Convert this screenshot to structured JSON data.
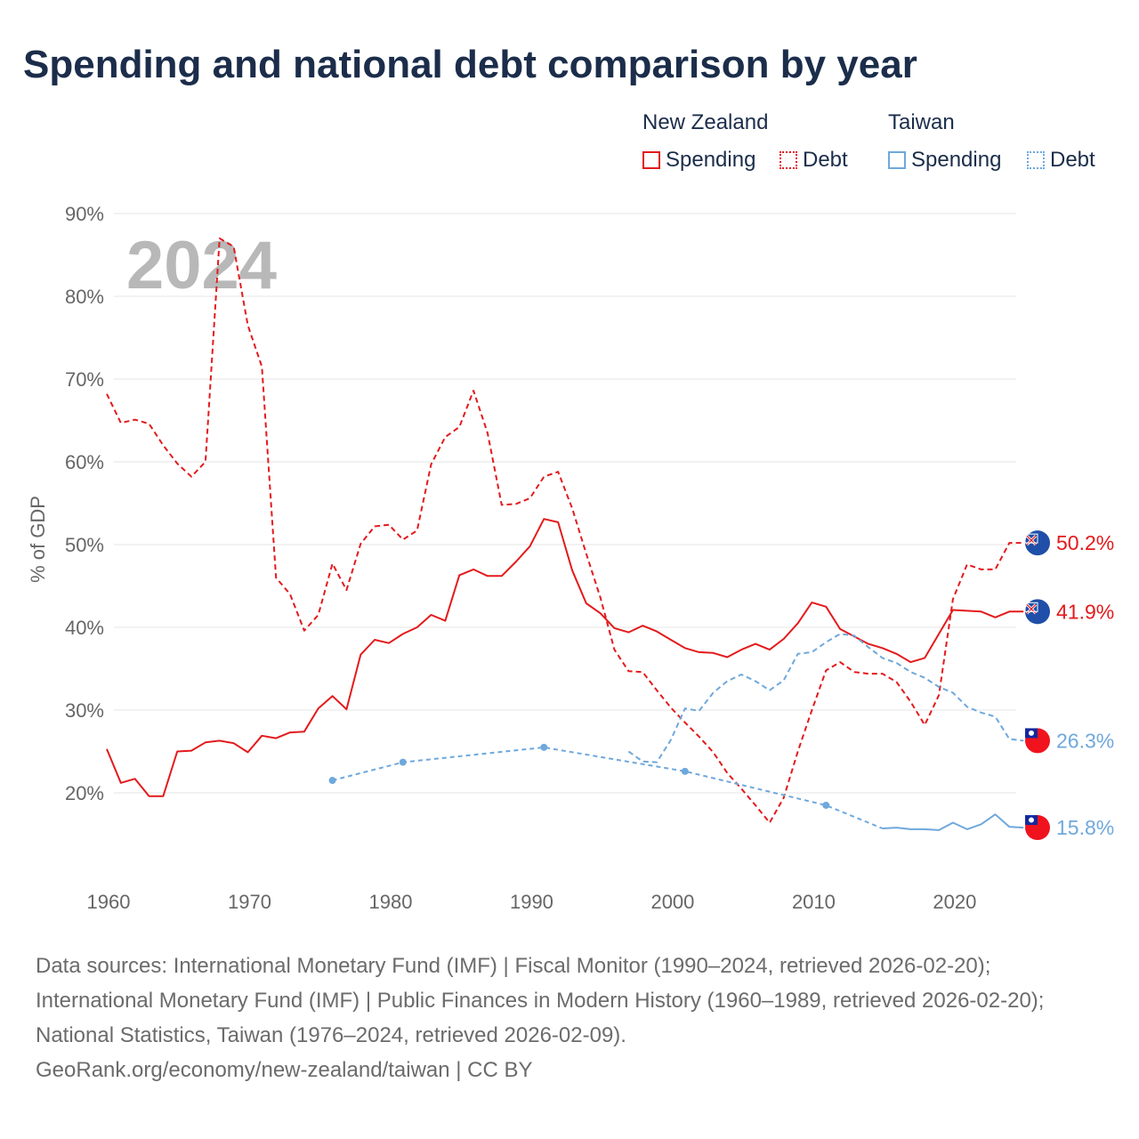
{
  "title": "Spending and national debt comparison by year",
  "legend": {
    "groups": [
      {
        "label": "New Zealand",
        "items": [
          {
            "label": "Spending",
            "color": "#e31a1c",
            "style": "solid"
          },
          {
            "label": "Debt",
            "color": "#e31a1c",
            "style": "dotted"
          }
        ]
      },
      {
        "label": "Taiwan",
        "items": [
          {
            "label": "Spending",
            "color": "#6fa8dc",
            "style": "solid"
          },
          {
            "label": "Debt",
            "color": "#6fa8dc",
            "style": "dotted"
          }
        ]
      }
    ]
  },
  "year_label": "2024",
  "source_lines": [
    "Data sources: International Monetary Fund (IMF) | Fiscal Monitor (1990–2024, retrieved 2026-02-20); International Monetary Fund (IMF) | Public Finances in Modern History (1960–1989, retrieved 2026-02-20); National Statistics, Taiwan (1976–2024, retrieved 2026-02-09).",
    "GeoRank.org/economy/new-zealand/taiwan | CC BY"
  ],
  "chart_data": {
    "type": "line",
    "title": "Spending and national debt comparison by year",
    "xlabel": "",
    "ylabel": "% of GDP",
    "xlim": [
      1960,
      2026
    ],
    "ylim": [
      10,
      90
    ],
    "x_ticks": [
      1960,
      1970,
      1980,
      1990,
      2000,
      2010,
      2020
    ],
    "x_tick_labels": [
      "1960",
      "1970",
      "1980",
      "1990",
      "2000",
      "2010",
      "2020"
    ],
    "y_ticks": [
      20,
      30,
      40,
      50,
      60,
      70,
      80,
      90
    ],
    "y_tick_labels": [
      "20%",
      "30%",
      "40%",
      "50%",
      "60%",
      "70%",
      "80%",
      "90%"
    ],
    "grid": true,
    "series": [
      {
        "name": "New Zealand Spending",
        "color": "#e31a1c",
        "dash": "solid",
        "markers": false,
        "end_label": "41.9%",
        "points": [
          [
            1960,
            25.3
          ],
          [
            1961,
            21.2
          ],
          [
            1962,
            21.7
          ],
          [
            1963,
            19.6
          ],
          [
            1964,
            19.6
          ],
          [
            1965,
            25.0
          ],
          [
            1966,
            25.1
          ],
          [
            1967,
            26.1
          ],
          [
            1968,
            26.3
          ],
          [
            1969,
            26.0
          ],
          [
            1970,
            24.9
          ],
          [
            1971,
            26.9
          ],
          [
            1972,
            26.6
          ],
          [
            1973,
            27.3
          ],
          [
            1974,
            27.4
          ],
          [
            1975,
            30.2
          ],
          [
            1976,
            31.7
          ],
          [
            1977,
            30.1
          ],
          [
            1978,
            36.7
          ],
          [
            1979,
            38.5
          ],
          [
            1980,
            38.1
          ],
          [
            1981,
            39.2
          ],
          [
            1982,
            40.0
          ],
          [
            1983,
            41.5
          ],
          [
            1984,
            40.8
          ],
          [
            1985,
            46.3
          ],
          [
            1986,
            47.0
          ],
          [
            1987,
            46.2
          ],
          [
            1988,
            46.2
          ],
          [
            1989,
            47.9
          ],
          [
            1990,
            49.8
          ],
          [
            1991,
            53.1
          ],
          [
            1992,
            52.7
          ],
          [
            1993,
            46.9
          ],
          [
            1994,
            42.9
          ],
          [
            1995,
            41.7
          ],
          [
            1996,
            39.9
          ],
          [
            1997,
            39.4
          ],
          [
            1998,
            40.2
          ],
          [
            1999,
            39.5
          ],
          [
            2000,
            38.5
          ],
          [
            2001,
            37.5
          ],
          [
            2002,
            37.0
          ],
          [
            2003,
            36.9
          ],
          [
            2004,
            36.4
          ],
          [
            2005,
            37.3
          ],
          [
            2006,
            38.0
          ],
          [
            2007,
            37.3
          ],
          [
            2008,
            38.6
          ],
          [
            2009,
            40.5
          ],
          [
            2010,
            43.0
          ],
          [
            2011,
            42.5
          ],
          [
            2012,
            39.8
          ],
          [
            2013,
            38.9
          ],
          [
            2014,
            38.0
          ],
          [
            2015,
            37.5
          ],
          [
            2016,
            36.8
          ],
          [
            2017,
            35.8
          ],
          [
            2018,
            36.3
          ],
          [
            2019,
            39.2
          ],
          [
            2020,
            42.1
          ],
          [
            2021,
            42.0
          ],
          [
            2022,
            41.9
          ],
          [
            2023,
            41.2
          ],
          [
            2024,
            41.9
          ],
          [
            2025,
            41.9
          ]
        ]
      },
      {
        "name": "New Zealand Debt",
        "color": "#e31a1c",
        "dash": "dashed",
        "markers": false,
        "end_label": "50.2%",
        "points": [
          [
            1960,
            68.2
          ],
          [
            1961,
            64.7
          ],
          [
            1962,
            65.1
          ],
          [
            1963,
            64.6
          ],
          [
            1964,
            62.0
          ],
          [
            1965,
            59.8
          ],
          [
            1966,
            58.2
          ],
          [
            1967,
            60.0
          ],
          [
            1968,
            87.0
          ],
          [
            1969,
            86.0
          ],
          [
            1970,
            76.5
          ],
          [
            1971,
            71.5
          ],
          [
            1972,
            46.0
          ],
          [
            1973,
            44.0
          ],
          [
            1974,
            39.6
          ],
          [
            1975,
            41.5
          ],
          [
            1976,
            47.7
          ],
          [
            1977,
            44.5
          ],
          [
            1978,
            50.1
          ],
          [
            1979,
            52.2
          ],
          [
            1980,
            52.4
          ],
          [
            1981,
            50.6
          ],
          [
            1982,
            51.7
          ],
          [
            1983,
            59.7
          ],
          [
            1984,
            63.0
          ],
          [
            1985,
            64.2
          ],
          [
            1986,
            68.6
          ],
          [
            1987,
            63.5
          ],
          [
            1988,
            54.8
          ],
          [
            1989,
            54.9
          ],
          [
            1990,
            55.6
          ],
          [
            1991,
            58.2
          ],
          [
            1992,
            58.8
          ],
          [
            1993,
            54.4
          ],
          [
            1994,
            48.9
          ],
          [
            1995,
            43.6
          ],
          [
            1996,
            37.3
          ],
          [
            1997,
            34.7
          ],
          [
            1998,
            34.6
          ],
          [
            1999,
            32.4
          ],
          [
            2000,
            30.3
          ],
          [
            2001,
            28.5
          ],
          [
            2002,
            26.8
          ],
          [
            2003,
            24.9
          ],
          [
            2004,
            22.4
          ],
          [
            2005,
            20.5
          ],
          [
            2006,
            18.5
          ],
          [
            2007,
            16.4
          ],
          [
            2008,
            19.4
          ],
          [
            2009,
            25.0
          ],
          [
            2010,
            30.0
          ],
          [
            2011,
            34.8
          ],
          [
            2012,
            35.8
          ],
          [
            2013,
            34.6
          ],
          [
            2014,
            34.4
          ],
          [
            2015,
            34.4
          ],
          [
            2016,
            33.4
          ],
          [
            2017,
            31.0
          ],
          [
            2018,
            28.2
          ],
          [
            2019,
            31.8
          ],
          [
            2020,
            43.4
          ],
          [
            2021,
            47.6
          ],
          [
            2022,
            47.0
          ],
          [
            2023,
            47.0
          ],
          [
            2024,
            50.2
          ],
          [
            2025,
            50.2
          ]
        ]
      },
      {
        "name": "Taiwan Spending",
        "color": "#6fa8dc",
        "dash": "solid",
        "markers": false,
        "end_label": "15.8%",
        "points": [
          [
            2015,
            15.7
          ],
          [
            2016,
            15.8
          ],
          [
            2017,
            15.6
          ],
          [
            2018,
            15.6
          ],
          [
            2019,
            15.5
          ],
          [
            2020,
            16.4
          ],
          [
            2021,
            15.6
          ],
          [
            2022,
            16.2
          ],
          [
            2023,
            17.4
          ],
          [
            2024,
            15.9
          ],
          [
            2025,
            15.8
          ]
        ]
      },
      {
        "name": "Taiwan Debt",
        "color": "#6fa8dc",
        "dash": "dashed",
        "markers": false,
        "end_label": "26.3%",
        "points": [
          [
            1997,
            25.0
          ],
          [
            1998,
            23.8
          ],
          [
            1999,
            23.7
          ],
          [
            2000,
            26.4
          ],
          [
            2001,
            30.2
          ],
          [
            2002,
            29.9
          ],
          [
            2003,
            32.1
          ],
          [
            2004,
            33.5
          ],
          [
            2005,
            34.3
          ],
          [
            2006,
            33.5
          ],
          [
            2007,
            32.4
          ],
          [
            2008,
            33.6
          ],
          [
            2009,
            36.8
          ],
          [
            2010,
            37.0
          ],
          [
            2011,
            38.2
          ],
          [
            2012,
            39.2
          ],
          [
            2013,
            39.0
          ],
          [
            2014,
            37.6
          ],
          [
            2015,
            36.3
          ],
          [
            2016,
            35.7
          ],
          [
            2017,
            34.6
          ],
          [
            2018,
            33.9
          ],
          [
            2019,
            32.8
          ],
          [
            2020,
            32.1
          ],
          [
            2021,
            30.4
          ],
          [
            2022,
            29.7
          ],
          [
            2023,
            29.2
          ],
          [
            2024,
            26.5
          ],
          [
            2025,
            26.3
          ]
        ]
      },
      {
        "name": "Taiwan Spending (early)",
        "color": "#6fa8dc",
        "dash": "dotted",
        "markers": true,
        "points": [
          [
            1976,
            21.5
          ],
          [
            1981,
            23.7
          ],
          [
            1991,
            25.5
          ],
          [
            2001,
            22.6
          ],
          [
            2011,
            18.5
          ],
          [
            2015,
            15.7
          ]
        ]
      }
    ],
    "end_labels": [
      {
        "series": "New Zealand Debt",
        "text": "50.2%",
        "value": 50.2,
        "color": "#e31a1c",
        "country": "New Zealand"
      },
      {
        "series": "New Zealand Spending",
        "text": "41.9%",
        "value": 41.9,
        "color": "#e31a1c",
        "country": "New Zealand"
      },
      {
        "series": "Taiwan Debt",
        "text": "26.3%",
        "value": 26.3,
        "color": "#6fa8dc",
        "country": "Taiwan"
      },
      {
        "series": "Taiwan Spending",
        "text": "15.8%",
        "value": 15.8,
        "color": "#6fa8dc",
        "country": "Taiwan"
      }
    ],
    "legend_position": "top-right"
  }
}
